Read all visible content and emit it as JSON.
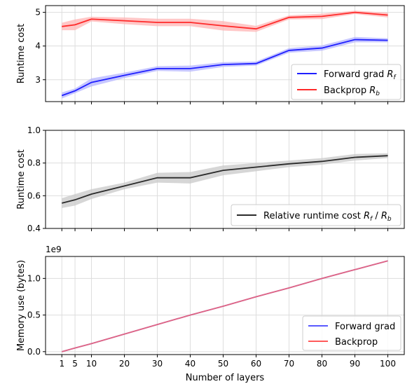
{
  "chart_data": [
    {
      "type": "line",
      "ylabel": "Runtime cost",
      "ylim": [
        2.35,
        5.2
      ],
      "yticks": [
        3,
        4,
        5
      ],
      "grid": true,
      "legend": "bottom-right",
      "x": [
        1,
        5,
        10,
        20,
        30,
        40,
        50,
        60,
        70,
        80,
        90,
        100
      ],
      "series": [
        {
          "name": "Forward grad R_f",
          "legend_main": "Forward grad ",
          "legend_sub": "f",
          "color": "#1f1fff",
          "band_color": "#b4b4ff",
          "values": [
            2.53,
            2.67,
            2.92,
            3.13,
            3.33,
            3.33,
            3.45,
            3.48,
            3.87,
            3.94,
            4.19,
            4.17
          ],
          "band": [
            0.09,
            0.07,
            0.12,
            0.08,
            0.07,
            0.09,
            0.07,
            0.06,
            0.07,
            0.08,
            0.08,
            0.06
          ]
        },
        {
          "name": "Backprop R_b",
          "legend_main": "Backprop ",
          "legend_sub": "b",
          "color": "#ff2a2a",
          "band_color": "#ffb4b4",
          "values": [
            4.58,
            4.63,
            4.8,
            4.75,
            4.7,
            4.7,
            4.6,
            4.51,
            4.85,
            4.88,
            5.0,
            4.92
          ],
          "band": [
            0.11,
            0.16,
            0.07,
            0.1,
            0.11,
            0.11,
            0.14,
            0.09,
            0.06,
            0.08,
            0.05,
            0.07
          ]
        }
      ]
    },
    {
      "type": "line",
      "ylabel": "Runtime cost",
      "ylim": [
        0.4,
        1.0
      ],
      "yticks": [
        0.4,
        0.6,
        0.8,
        1.0
      ],
      "grid": true,
      "legend": "bottom-right",
      "x": [
        1,
        5,
        10,
        20,
        30,
        40,
        50,
        60,
        70,
        80,
        90,
        100
      ],
      "series": [
        {
          "name": "Relative runtime cost R_f / R_b",
          "legend_main": "Relative runtime cost ",
          "legend_sub1": "f",
          "legend_mid": " / ",
          "legend_sub2": "b",
          "color": "#2a2a2a",
          "band_color": "#c8c8c8",
          "values": [
            0.555,
            0.575,
            0.61,
            0.66,
            0.71,
            0.71,
            0.755,
            0.775,
            0.795,
            0.81,
            0.835,
            0.845
          ],
          "band": [
            0.03,
            0.035,
            0.03,
            0.02,
            0.03,
            0.035,
            0.03,
            0.025,
            0.02,
            0.02,
            0.02,
            0.015
          ]
        }
      ]
    },
    {
      "type": "line",
      "ylabel": "Memory use (bytes)",
      "xlabel": "Number of layers",
      "offset_text": "1e9",
      "ylim": [
        -0.04,
        1.3
      ],
      "yticks": [
        0.0,
        0.5,
        1.0
      ],
      "grid": true,
      "legend": "bottom-right",
      "x": [
        1,
        5,
        10,
        20,
        30,
        40,
        50,
        60,
        70,
        80,
        90,
        100
      ],
      "xticks": [
        1,
        5,
        10,
        20,
        30,
        40,
        50,
        60,
        70,
        80,
        90,
        100
      ],
      "series": [
        {
          "name": "Forward grad",
          "color": "#5a5aff",
          "values": [
            0.0,
            0.05,
            0.11,
            0.24,
            0.37,
            0.5,
            0.62,
            0.75,
            0.87,
            1.0,
            1.12,
            1.24
          ]
        },
        {
          "name": "Backprop",
          "color": "#ff5a5a",
          "values": [
            0.0,
            0.05,
            0.11,
            0.24,
            0.37,
            0.5,
            0.62,
            0.75,
            0.87,
            1.0,
            1.12,
            1.24
          ]
        }
      ]
    }
  ]
}
